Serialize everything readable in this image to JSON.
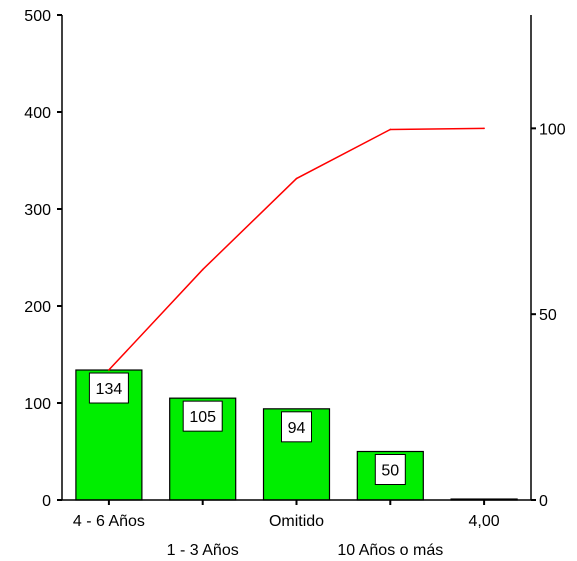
{
  "chart_data": {
    "type": "bar",
    "categories": [
      "4 - 6 Años",
      "1 - 3 Años",
      "Omitido",
      "10 Años o más",
      "4,00"
    ],
    "series": [
      {
        "kind": "bar",
        "values": [
          134,
          105,
          94,
          50,
          1
        ]
      },
      {
        "kind": "line",
        "axis": "right",
        "values": [
          35,
          62,
          86.5,
          99.7,
          100
        ]
      }
    ],
    "data_labels": [
      "134",
      "105",
      "94",
      "50"
    ],
    "ylim": [
      0,
      500
    ],
    "y_ticks": [
      "0",
      "100",
      "200",
      "300",
      "400",
      "500"
    ],
    "y2lim": [
      0,
      130.5
    ],
    "y2_ticks": [
      "0",
      "50",
      "100"
    ],
    "grid": false,
    "colors": {
      "bar": "#00ee00",
      "line": "#ff0000",
      "axis": "#000000"
    }
  }
}
